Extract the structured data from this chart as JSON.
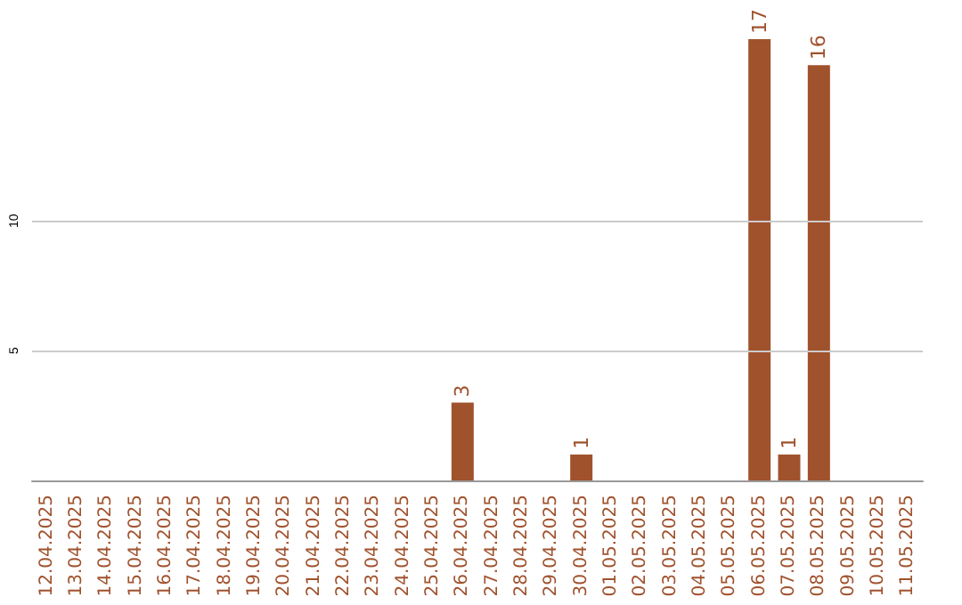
{
  "chart_data": {
    "type": "bar",
    "categories": [
      "12.04.2025",
      "13.04.2025",
      "14.04.2025",
      "15.04.2025",
      "16.04.2025",
      "17.04.2025",
      "18.04.2025",
      "19.04.2025",
      "20.04.2025",
      "21.04.2025",
      "22.04.2025",
      "23.04.2025",
      "24.04.2025",
      "25.04.2025",
      "26.04.2025",
      "27.04.2025",
      "28.04.2025",
      "29.04.2025",
      "30.04.2025",
      "01.05.2025",
      "02.05.2025",
      "03.05.2025",
      "04.05.2025",
      "05.05.2025",
      "06.05.2025",
      "07.05.2025",
      "08.05.2025",
      "09.05.2025",
      "10.05.2025",
      "11.05.2025"
    ],
    "values": [
      0,
      0,
      0,
      0,
      0,
      0,
      0,
      0,
      0,
      0,
      0,
      0,
      0,
      0,
      3,
      0,
      0,
      0,
      1,
      0,
      0,
      0,
      0,
      0,
      17,
      1,
      16,
      0,
      0,
      0
    ],
    "value_labels": [
      null,
      null,
      null,
      null,
      null,
      null,
      null,
      null,
      null,
      null,
      null,
      null,
      null,
      null,
      "3",
      null,
      null,
      null,
      "1",
      null,
      null,
      null,
      null,
      null,
      "17",
      "1",
      "16",
      null,
      null,
      null
    ],
    "color": "#a0522d",
    "ylim": [
      0,
      17
    ],
    "yticks": [
      5,
      10
    ],
    "grid": "y"
  }
}
